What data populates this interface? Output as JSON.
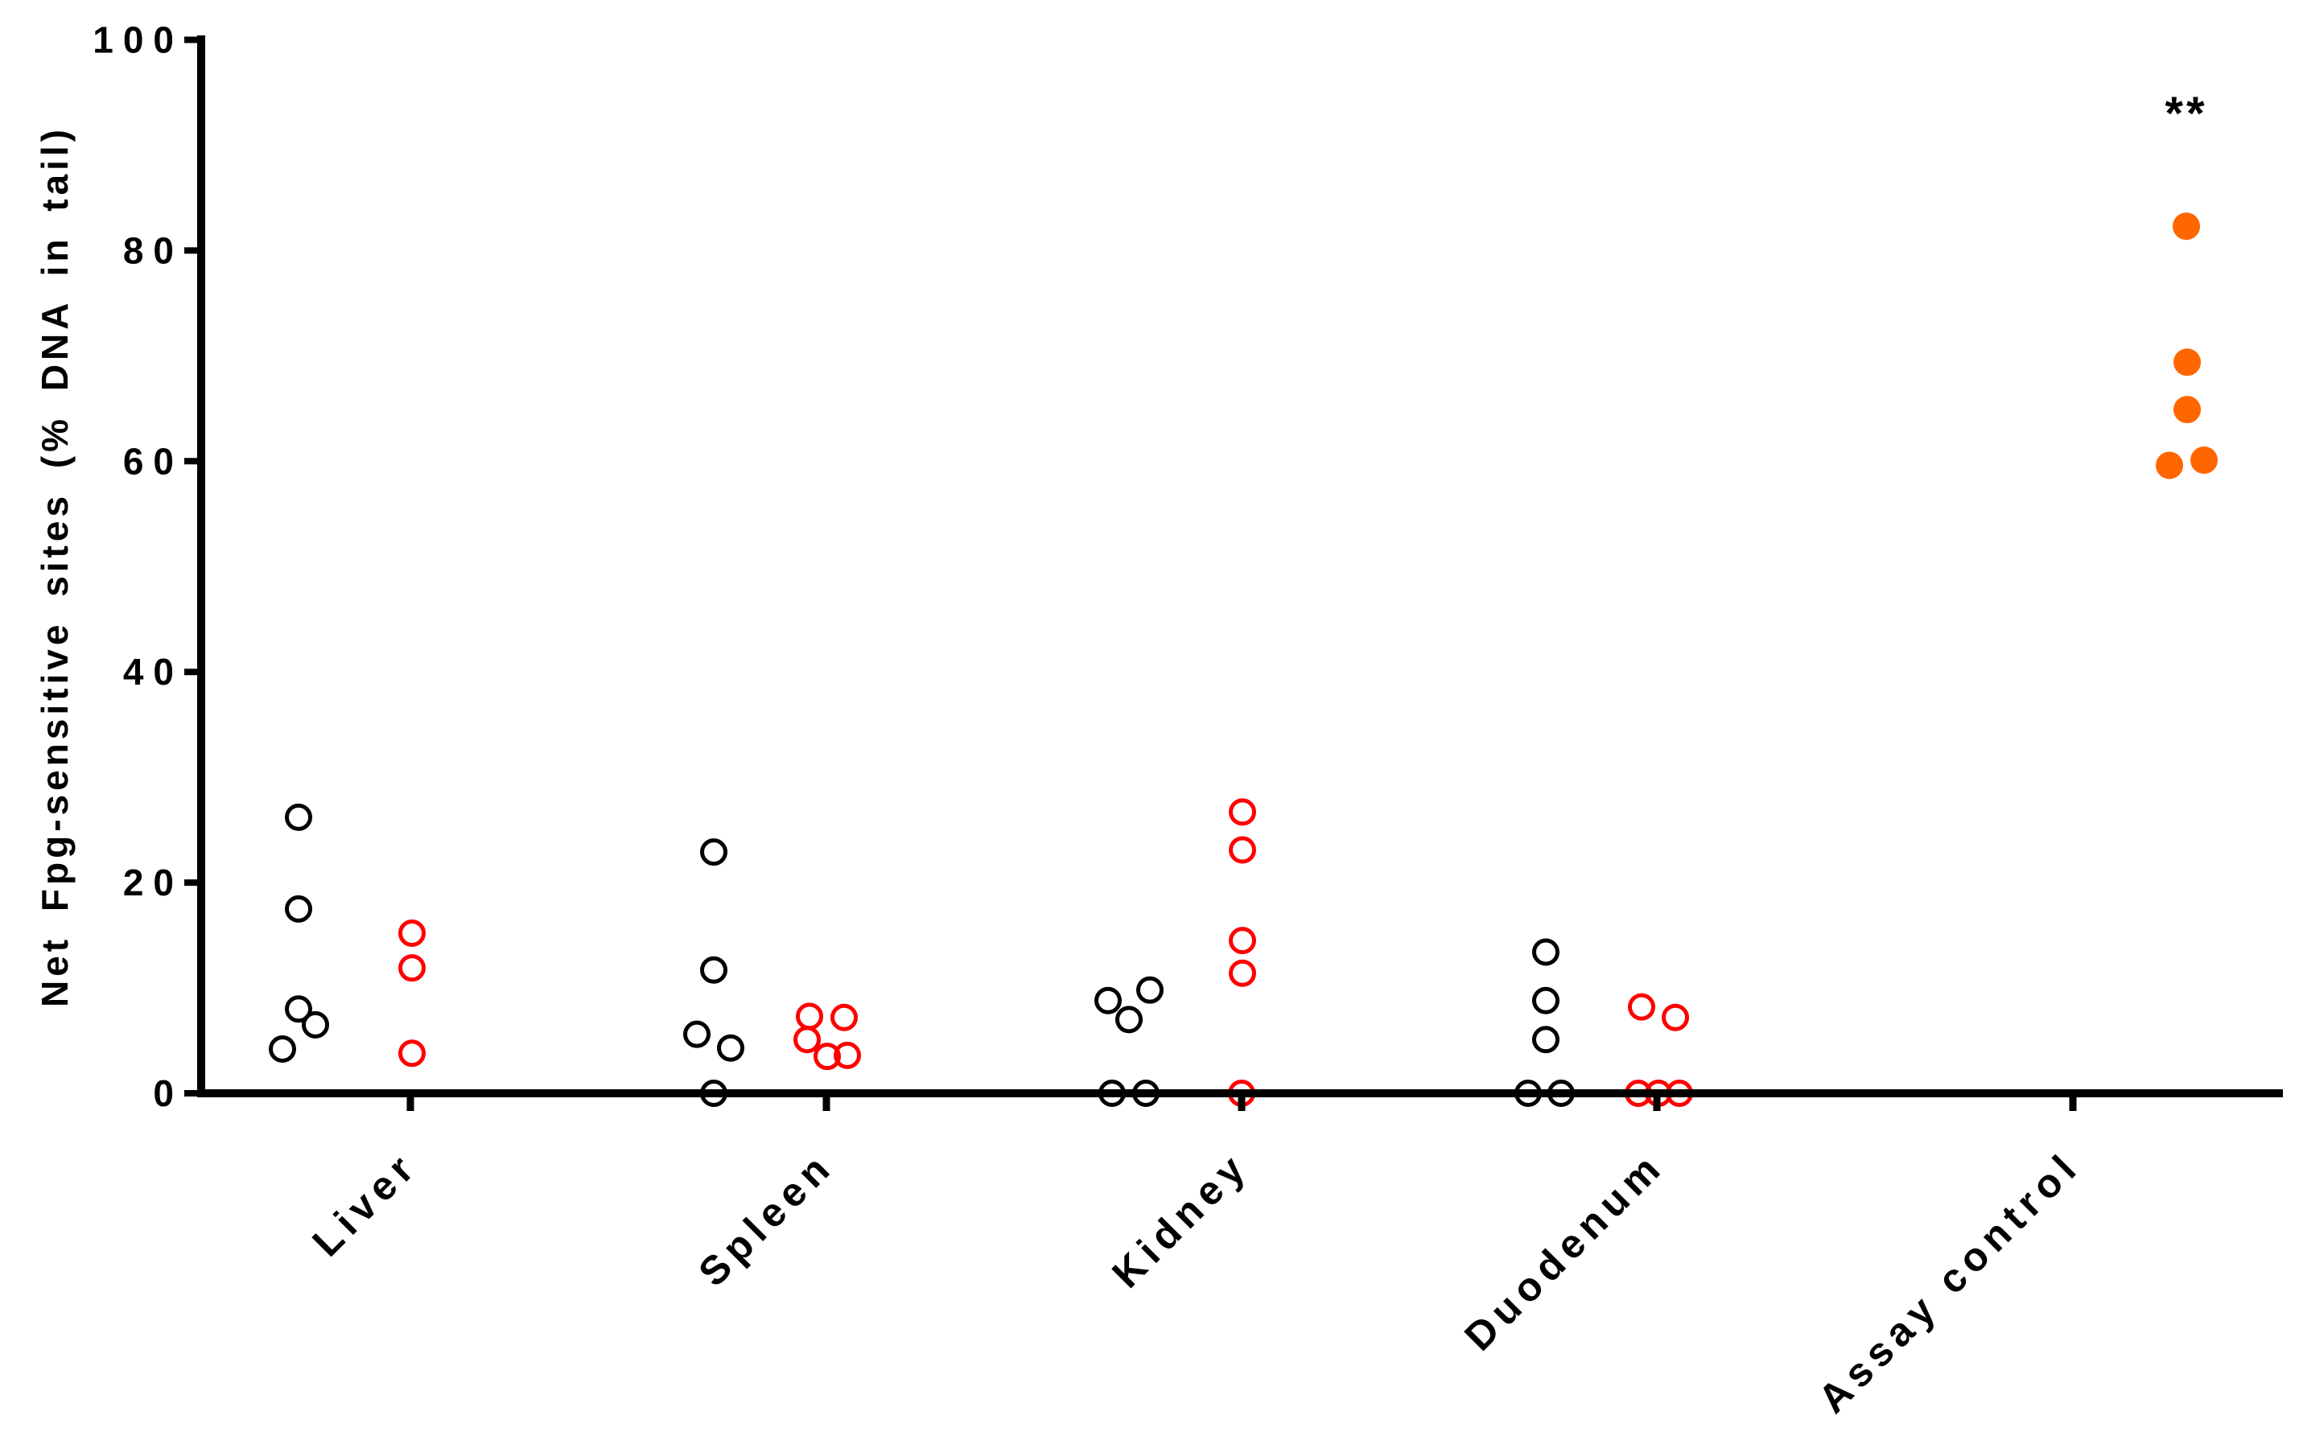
{
  "figure": {
    "background": "#FFFFFF"
  },
  "chart_data": {
    "type": "scatter",
    "title": "",
    "xlabel": "",
    "ylabel": "Net Fpg-sensitive sites (% DNA in tail)",
    "ylim": [
      0,
      100
    ],
    "yticks": [
      0,
      20,
      40,
      60,
      80,
      100
    ],
    "ytick_labels": [
      "0",
      "20",
      "40",
      "60",
      "80",
      "100"
    ],
    "categories": [
      "Liver",
      "Spleen",
      "Kidney",
      "Duodenum",
      "Assay control"
    ],
    "grid": false,
    "legend_position": "none",
    "marker": {
      "radius_px": 14.5,
      "stroke_px": 5
    },
    "colors": {
      "open_black": "#000000",
      "open_red": "#FF0000",
      "filled_orange": "#FF6600"
    },
    "annotation": {
      "text": "**",
      "category": "Assay control",
      "y_value": 93,
      "dx": 141,
      "color": "#000000"
    },
    "series": [
      {
        "name": "open-black-circles",
        "marker": "open-circle",
        "color": "#000000",
        "points": [
          {
            "category": "Liver",
            "y": 26.2,
            "dx": -139
          },
          {
            "category": "Liver",
            "y": 17.5,
            "dx": -139
          },
          {
            "category": "Liver",
            "y": 8.0,
            "dx": -139
          },
          {
            "category": "Liver",
            "y": 6.5,
            "dx": -118
          },
          {
            "category": "Liver",
            "y": 4.2,
            "dx": -159
          },
          {
            "category": "Spleen",
            "y": 22.9,
            "dx": -140
          },
          {
            "category": "Spleen",
            "y": 11.7,
            "dx": -140
          },
          {
            "category": "Spleen",
            "y": 5.6,
            "dx": -161
          },
          {
            "category": "Spleen",
            "y": 4.3,
            "dx": -119
          },
          {
            "category": "Spleen",
            "y": 0,
            "dx": -140
          },
          {
            "category": "Kidney",
            "y": 9.8,
            "dx": -114
          },
          {
            "category": "Kidney",
            "y": 8.8,
            "dx": -166
          },
          {
            "category": "Kidney",
            "y": 7.0,
            "dx": -140
          },
          {
            "category": "Kidney",
            "y": 0,
            "dx": -161
          },
          {
            "category": "Kidney",
            "y": 0,
            "dx": -119
          },
          {
            "category": "Duodenum",
            "y": 13.4,
            "dx": -138
          },
          {
            "category": "Duodenum",
            "y": 8.8,
            "dx": -138
          },
          {
            "category": "Duodenum",
            "y": 5.1,
            "dx": -138
          },
          {
            "category": "Duodenum",
            "y": 0,
            "dx": -160
          },
          {
            "category": "Duodenum",
            "y": 0,
            "dx": -119
          }
        ]
      },
      {
        "name": "open-red-circles",
        "marker": "open-circle",
        "color": "#FF0000",
        "points": [
          {
            "category": "Liver",
            "y": 15.2,
            "dx": 2
          },
          {
            "category": "Liver",
            "y": 11.9,
            "dx": 2
          },
          {
            "category": "Liver",
            "y": 3.8,
            "dx": 2
          },
          {
            "category": "Spleen",
            "y": 7.3,
            "dx": -21
          },
          {
            "category": "Spleen",
            "y": 7.2,
            "dx": 22
          },
          {
            "category": "Spleen",
            "y": 5.1,
            "dx": -24
          },
          {
            "category": "Spleen",
            "y": 3.5,
            "dx": 1
          },
          {
            "category": "Spleen",
            "y": 3.6,
            "dx": 26
          },
          {
            "category": "Kidney",
            "y": 26.7,
            "dx": 1
          },
          {
            "category": "Kidney",
            "y": 23.1,
            "dx": 1
          },
          {
            "category": "Kidney",
            "y": 14.5,
            "dx": 1
          },
          {
            "category": "Kidney",
            "y": 11.4,
            "dx": 1
          },
          {
            "category": "Kidney",
            "y": 0,
            "dx": 0
          },
          {
            "category": "Duodenum",
            "y": 8.2,
            "dx": -19
          },
          {
            "category": "Duodenum",
            "y": 7.2,
            "dx": 23
          },
          {
            "category": "Duodenum",
            "y": 0,
            "dx": -23
          },
          {
            "category": "Duodenum",
            "y": 0,
            "dx": 2
          },
          {
            "category": "Duodenum",
            "y": 0,
            "dx": 28
          }
        ]
      },
      {
        "name": "filled-orange-circles",
        "marker": "filled-circle",
        "color": "#FF6600",
        "points": [
          {
            "category": "Assay control",
            "y": 82.3,
            "dx": 141
          },
          {
            "category": "Assay control",
            "y": 69.4,
            "dx": 142
          },
          {
            "category": "Assay control",
            "y": 64.9,
            "dx": 142
          },
          {
            "category": "Assay control",
            "y": 59.6,
            "dx": 120
          },
          {
            "category": "Assay control",
            "y": 60.1,
            "dx": 163
          }
        ]
      }
    ]
  }
}
